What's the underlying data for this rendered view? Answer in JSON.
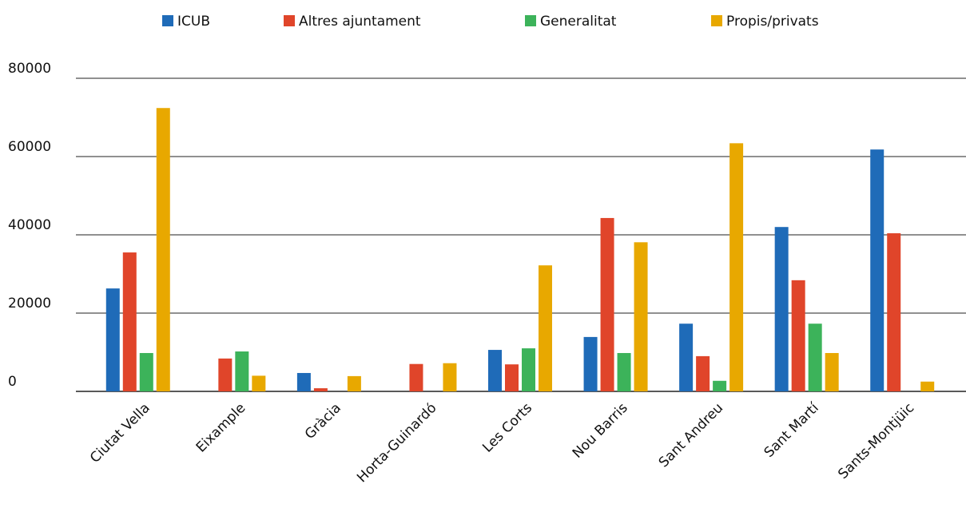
{
  "chart_data": {
    "type": "bar",
    "categories": [
      "Ciutat Vella",
      "Eixample",
      "Gràcia",
      "Horta-Guinardó",
      "Les Corts",
      "Nou Barris",
      "Sant Andreu",
      "Sant Martí",
      "Sants-Montjüic"
    ],
    "series": [
      {
        "name": "ICUB",
        "color": "#1f6bb8",
        "values": [
          26300,
          0,
          4700,
          0,
          10600,
          13900,
          17300,
          42000,
          61800
        ]
      },
      {
        "name": "Altres ajuntament",
        "color": "#e0452a",
        "values": [
          35500,
          8400,
          800,
          7000,
          6900,
          44300,
          9000,
          28400,
          40400
        ]
      },
      {
        "name": "Generalitat",
        "color": "#3cb35a",
        "values": [
          9800,
          10200,
          0,
          0,
          11000,
          9800,
          2700,
          17300,
          0
        ]
      },
      {
        "name": "Propis/privats",
        "color": "#e8a800",
        "values": [
          72400,
          4000,
          3900,
          7200,
          32200,
          38100,
          63400,
          9800,
          2500
        ]
      }
    ],
    "ylim": [
      0,
      80000
    ],
    "yticks": [
      0,
      20000,
      40000,
      60000,
      80000
    ],
    "grid": true,
    "legend": "top"
  }
}
